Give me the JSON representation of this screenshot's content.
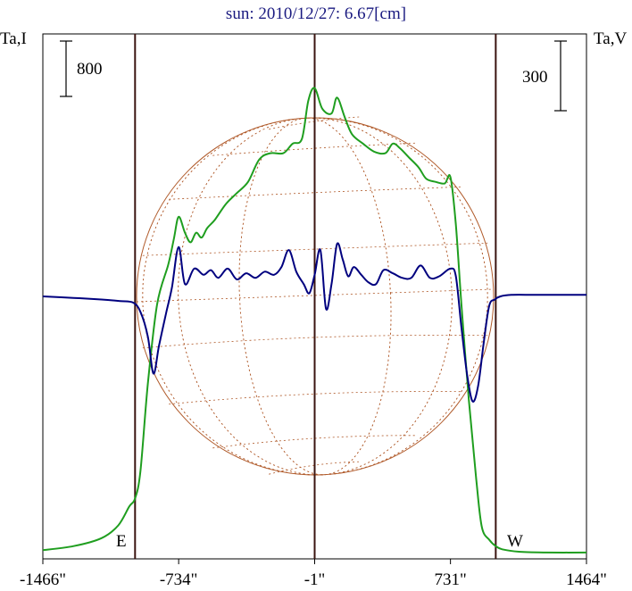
{
  "chart_data": {
    "type": "line",
    "title": "sun: 2010/12/27: 6.67[cm]",
    "left_axis_label": "Ta,I",
    "right_axis_label": "Ta,V",
    "x_unit": "arcsec",
    "x_tick_labels": [
      "-1466\"",
      "-734\"",
      "-1\"",
      "731\"",
      "1464\""
    ],
    "x_ticks": [
      -1466,
      -734,
      -1,
      731,
      1464
    ],
    "xlim": [
      -1466,
      1464
    ],
    "limb_labels": {
      "east": "E",
      "west": "W"
    },
    "limb_markers": [
      -969,
      975
    ],
    "scale_bars": {
      "intensity": "800",
      "polarization": "300"
    },
    "colors": {
      "intensity": "#1f9e1f",
      "polarization": "#00007f",
      "disk": "#b05a2a",
      "markers": "#3a1410"
    },
    "series": [
      {
        "key": "intensity",
        "x": [
          -1466,
          -1300,
          -1150,
          -1060,
          -1000,
          -969,
          -940,
          -900,
          -850,
          -790,
          -760,
          -734,
          -700,
          -670,
          -640,
          -610,
          -580,
          -540,
          -480,
          -420,
          -360,
          -300,
          -240,
          -170,
          -120,
          -70,
          -35,
          -1,
          40,
          90,
          120,
          160,
          200,
          260,
          320,
          380,
          420,
          460,
          510,
          560,
          600,
          650,
          700,
          731,
          760,
          790,
          830,
          870,
          900,
          940,
          975,
          1010,
          1100,
          1250,
          1464
        ],
        "values": [
          55,
          80,
          130,
          210,
          330,
          380,
          550,
          1100,
          1600,
          1850,
          2010,
          2150,
          2050,
          1990,
          2050,
          2020,
          2080,
          2130,
          2230,
          2300,
          2370,
          2510,
          2550,
          2550,
          2610,
          2640,
          2880,
          2960,
          2830,
          2800,
          2900,
          2780,
          2670,
          2610,
          2560,
          2550,
          2610,
          2580,
          2520,
          2460,
          2390,
          2370,
          2360,
          2400,
          2100,
          1600,
          1000,
          500,
          200,
          120,
          80,
          60,
          45,
          40,
          40
        ]
      },
      {
        "key": "polarization",
        "x": [
          -1466,
          -1300,
          -1150,
          -1050,
          -980,
          -940,
          -900,
          -870,
          -840,
          -800,
          -770,
          -734,
          -700,
          -650,
          -600,
          -560,
          -520,
          -470,
          -420,
          -370,
          -320,
          -270,
          -220,
          -180,
          -140,
          -100,
          -60,
          -30,
          -1,
          30,
          60,
          90,
          120,
          150,
          180,
          210,
          250,
          290,
          330,
          370,
          420,
          470,
          520,
          570,
          620,
          670,
          731,
          760,
          790,
          820,
          850,
          880,
          910,
          940,
          970,
          1000,
          1060,
          1200,
          1464
        ],
        "values": [
          0,
          -5,
          -10,
          -15,
          -20,
          -50,
          -130,
          -250,
          -160,
          -50,
          30,
          160,
          40,
          90,
          70,
          85,
          60,
          90,
          55,
          75,
          60,
          80,
          70,
          95,
          150,
          80,
          40,
          10,
          70,
          150,
          -40,
          40,
          170,
          120,
          65,
          95,
          70,
          45,
          40,
          85,
          75,
          60,
          60,
          100,
          60,
          65,
          90,
          65,
          -100,
          -250,
          -340,
          -290,
          -150,
          -30,
          -10,
          0,
          5,
          5,
          5
        ]
      }
    ],
    "left_ylim": [
      0,
      3300
    ],
    "right_ylim": [
      -850,
      850
    ]
  }
}
